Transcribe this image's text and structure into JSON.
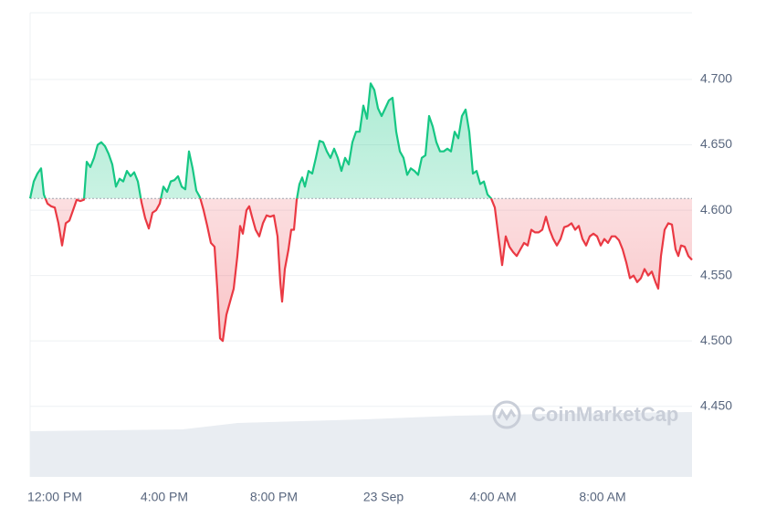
{
  "chart_data": {
    "type": "line",
    "watermark": "CoinMarketCap",
    "x": [
      -54,
      -46,
      -38,
      -30,
      -24,
      -16,
      -8,
      0,
      8,
      16,
      24,
      32,
      40,
      48,
      56,
      64,
      70,
      78,
      86,
      94,
      102,
      110,
      118,
      126,
      134,
      142,
      150,
      158,
      166,
      174,
      182,
      190,
      198,
      206,
      214,
      222,
      230,
      238,
      246,
      254,
      262,
      270,
      278,
      286,
      294,
      302,
      310,
      318,
      326,
      334,
      342,
      350,
      356,
      362,
      368,
      376,
      384,
      392,
      400,
      406,
      412,
      420,
      426,
      432,
      440,
      448,
      456,
      464,
      472,
      480,
      488,
      494,
      498,
      504,
      512,
      518,
      524,
      530,
      536,
      542,
      548,
      556,
      564,
      572,
      580,
      588,
      596,
      604,
      612,
      620,
      628,
      636,
      644,
      652,
      660,
      668,
      676,
      684,
      692,
      700,
      708,
      716,
      724,
      732,
      740,
      748,
      756,
      764,
      772,
      780,
      788,
      796,
      804,
      812,
      820,
      828,
      836,
      844,
      852,
      860,
      868,
      876,
      884,
      892,
      900,
      908,
      916,
      924,
      932,
      940,
      948,
      956,
      964,
      972,
      980,
      988,
      996,
      1004,
      1012,
      1020,
      1028,
      1036,
      1044,
      1052,
      1060,
      1068,
      1076,
      1084,
      1092,
      1100,
      1108,
      1116,
      1124,
      1132,
      1140,
      1148,
      1156,
      1164,
      1172,
      1180,
      1188,
      1196,
      1204,
      1212,
      1220,
      1228,
      1236,
      1244,
      1252,
      1260,
      1268,
      1276,
      1284,
      1292,
      1300,
      1308,
      1316,
      1322,
      1328,
      1336,
      1344,
      1352,
      1360,
      1366,
      1372,
      1380,
      1388,
      1396
    ],
    "values": [
      4.609,
      4.622,
      4.628,
      4.632,
      4.612,
      4.605,
      4.603,
      4.602,
      4.59,
      4.573,
      4.59,
      4.592,
      4.6,
      4.608,
      4.607,
      4.608,
      4.637,
      4.633,
      4.64,
      4.65,
      4.652,
      4.649,
      4.643,
      4.635,
      4.618,
      4.624,
      4.622,
      4.63,
      4.626,
      4.629,
      4.622,
      4.606,
      4.594,
      4.586,
      4.598,
      4.6,
      4.605,
      4.618,
      4.614,
      4.622,
      4.623,
      4.626,
      4.618,
      4.616,
      4.645,
      4.632,
      4.615,
      4.61,
      4.6,
      4.588,
      4.575,
      4.572,
      4.54,
      4.502,
      4.5,
      4.52,
      4.53,
      4.54,
      4.565,
      4.588,
      4.582,
      4.6,
      4.603,
      4.595,
      4.585,
      4.58,
      4.59,
      4.596,
      4.595,
      4.596,
      4.58,
      4.545,
      4.53,
      4.555,
      4.57,
      4.585,
      4.585,
      4.608,
      4.62,
      4.625,
      4.618,
      4.63,
      4.628,
      4.64,
      4.653,
      4.652,
      4.645,
      4.64,
      4.647,
      4.64,
      4.63,
      4.64,
      4.635,
      4.652,
      4.66,
      4.66,
      4.68,
      4.67,
      4.697,
      4.692,
      4.678,
      4.672,
      4.678,
      4.684,
      4.686,
      4.66,
      4.645,
      4.64,
      4.627,
      4.632,
      4.63,
      4.627,
      4.64,
      4.642,
      4.672,
      4.664,
      4.652,
      4.645,
      4.645,
      4.647,
      4.645,
      4.66,
      4.655,
      4.672,
      4.677,
      4.66,
      4.628,
      4.63,
      4.62,
      4.622,
      4.612,
      4.609,
      4.602,
      4.58,
      4.558,
      4.58,
      4.572,
      4.568,
      4.565,
      4.57,
      4.575,
      4.573,
      4.585,
      4.583,
      4.583,
      4.585,
      4.595,
      4.585,
      4.578,
      4.573,
      4.578,
      4.587,
      4.588,
      4.59,
      4.585,
      4.588,
      4.578,
      4.573,
      4.58,
      4.582,
      4.58,
      4.573,
      4.578,
      4.575,
      4.58,
      4.58,
      4.577,
      4.57,
      4.56,
      4.548,
      4.55,
      4.545,
      4.548,
      4.555,
      4.55,
      4.553,
      4.545,
      4.54,
      4.565,
      4.585,
      4.59,
      4.589,
      4.57,
      4.565,
      4.573,
      4.572,
      4.565,
      4.562
    ],
    "baseline": 4.609,
    "color_up": "#16c784",
    "color_down": "#ea3943",
    "xlim": [
      -54,
      1396
    ],
    "xticks": [
      {
        "value": 0,
        "label": "12:00 PM"
      },
      {
        "value": 240,
        "label": "4:00 PM"
      },
      {
        "value": 480,
        "label": "8:00 PM"
      },
      {
        "value": 720,
        "label": "23 Sep"
      },
      {
        "value": 960,
        "label": "4:00 AM"
      },
      {
        "value": 1200,
        "label": "8:00 AM"
      }
    ],
    "ylim": [
      4.396,
      4.751
    ],
    "yticks": [
      {
        "value": 4.45,
        "label": "4.450"
      },
      {
        "value": 4.5,
        "label": "4.500"
      },
      {
        "value": 4.55,
        "label": "4.550"
      },
      {
        "value": 4.6,
        "label": "4.600"
      },
      {
        "value": 4.65,
        "label": "4.650"
      },
      {
        "value": 4.7,
        "label": "4.700"
      }
    ],
    "grid": true
  }
}
